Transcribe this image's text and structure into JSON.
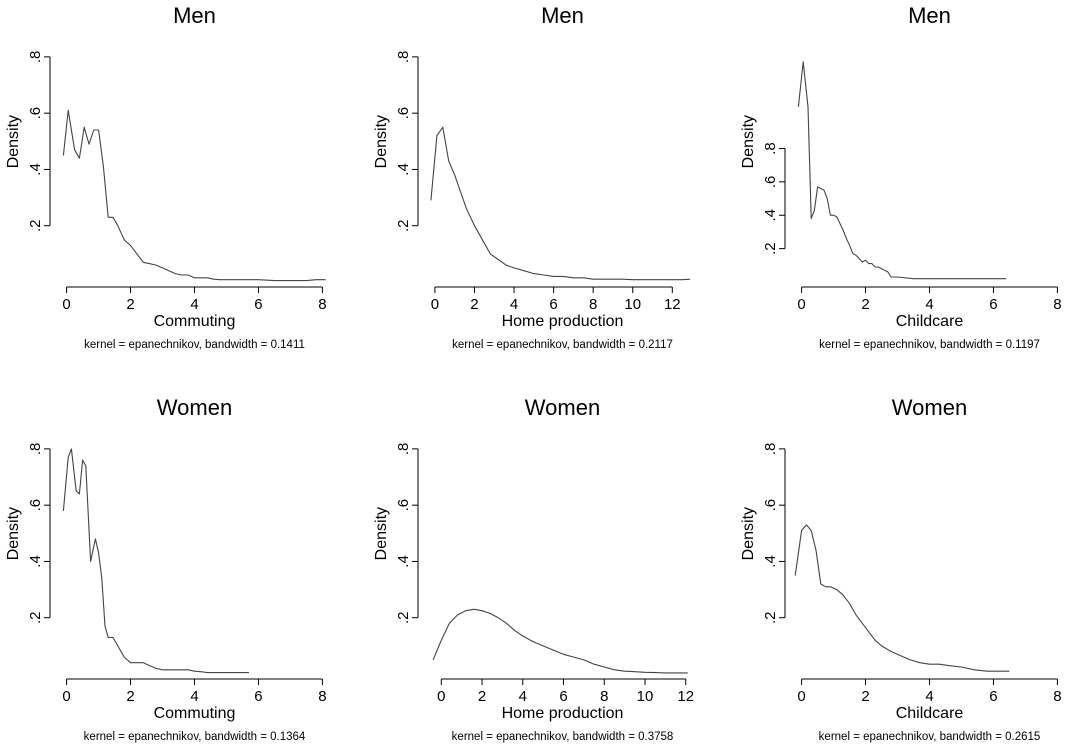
{
  "chart_data": [
    {
      "type": "line",
      "title": "Men",
      "xlabel": "Commuting",
      "ylabel": "Density",
      "note": "kernel = epanechnikov, bandwidth = 0.1411",
      "xlim": [
        -0.3,
        8.3
      ],
      "ylim": [
        0,
        0.86
      ],
      "xticks": [
        {
          "v": 0,
          "label": "0"
        },
        {
          "v": 2,
          "label": "2"
        },
        {
          "v": 4,
          "label": "4"
        },
        {
          "v": 6,
          "label": "6"
        },
        {
          "v": 8,
          "label": "8"
        }
      ],
      "yticks": [
        {
          "v": 0.2,
          "label": ".2"
        },
        {
          "v": 0.4,
          "label": ".4"
        },
        {
          "v": 0.6,
          "label": ".6"
        },
        {
          "v": 0.8,
          "label": ".8"
        }
      ],
      "series": [
        {
          "x": [
            -0.1,
            0.05,
            0.25,
            0.4,
            0.55,
            0.7,
            0.85,
            1.0,
            1.15,
            1.3,
            1.45,
            1.6,
            1.8,
            2.0,
            2.2,
            2.4,
            2.6,
            2.8,
            3.0,
            3.2,
            3.4,
            3.6,
            3.8,
            4.0,
            4.2,
            4.4,
            4.6,
            4.8,
            5.0,
            5.5,
            6.0,
            6.5,
            7.0,
            7.5,
            7.8,
            8.1
          ],
          "y": [
            0.45,
            0.61,
            0.47,
            0.44,
            0.55,
            0.49,
            0.54,
            0.54,
            0.41,
            0.23,
            0.23,
            0.2,
            0.15,
            0.13,
            0.1,
            0.07,
            0.065,
            0.06,
            0.05,
            0.04,
            0.03,
            0.025,
            0.025,
            0.015,
            0.015,
            0.015,
            0.01,
            0.008,
            0.008,
            0.008,
            0.008,
            0.005,
            0.005,
            0.005,
            0.008,
            0.008
          ]
        }
      ]
    },
    {
      "type": "line",
      "title": "Men",
      "xlabel": "Home production",
      "ylabel": "Density",
      "note": "kernel = epanechnikov, bandwidth = 0.2117",
      "xlim": [
        -0.5,
        13.4
      ],
      "ylim": [
        0,
        0.86
      ],
      "xticks": [
        {
          "v": 0,
          "label": "0"
        },
        {
          "v": 2,
          "label": "2"
        },
        {
          "v": 4,
          "label": "4"
        },
        {
          "v": 6,
          "label": "6"
        },
        {
          "v": 8,
          "label": "8"
        },
        {
          "v": 10,
          "label": "10"
        },
        {
          "v": 12,
          "label": "12"
        }
      ],
      "yticks": [
        {
          "v": 0.2,
          "label": ".2"
        },
        {
          "v": 0.4,
          "label": ".4"
        },
        {
          "v": 0.6,
          "label": ".6"
        },
        {
          "v": 0.8,
          "label": ".8"
        }
      ],
      "series": [
        {
          "x": [
            -0.2,
            0.1,
            0.4,
            0.7,
            1.0,
            1.3,
            1.6,
            2.0,
            2.4,
            2.8,
            3.2,
            3.6,
            4.0,
            4.5,
            5.0,
            5.5,
            6.0,
            6.5,
            7.0,
            7.5,
            8.0,
            8.5,
            9.0,
            9.5,
            10.0,
            10.5,
            11.0,
            11.5,
            12.0,
            12.5,
            12.9
          ],
          "y": [
            0.29,
            0.52,
            0.55,
            0.43,
            0.38,
            0.32,
            0.26,
            0.2,
            0.15,
            0.1,
            0.08,
            0.06,
            0.05,
            0.04,
            0.03,
            0.025,
            0.02,
            0.02,
            0.015,
            0.015,
            0.01,
            0.01,
            0.01,
            0.01,
            0.008,
            0.008,
            0.008,
            0.008,
            0.008,
            0.008,
            0.01
          ]
        }
      ]
    },
    {
      "type": "line",
      "title": "Men",
      "xlabel": "Childcare",
      "ylabel": "Density",
      "note": "kernel = epanechnikov, bandwidth = 0.1197",
      "xlim": [
        -0.3,
        8.3
      ],
      "ylim": [
        0,
        1.45
      ],
      "xticks": [
        {
          "v": 0,
          "label": "0"
        },
        {
          "v": 2,
          "label": "2"
        },
        {
          "v": 4,
          "label": "4"
        },
        {
          "v": 6,
          "label": "6"
        },
        {
          "v": 8,
          "label": "8"
        }
      ],
      "yticks": [
        {
          "v": 0.2,
          "label": ".2"
        },
        {
          "v": 0.4,
          "label": ".4"
        },
        {
          "v": 0.6,
          "label": ".6"
        },
        {
          "v": 0.8,
          "label": ".8"
        }
      ],
      "series": [
        {
          "x": [
            -0.1,
            0.05,
            0.2,
            0.3,
            0.4,
            0.5,
            0.6,
            0.7,
            0.8,
            0.9,
            1.0,
            1.1,
            1.2,
            1.3,
            1.4,
            1.5,
            1.6,
            1.7,
            1.8,
            1.9,
            2.0,
            2.1,
            2.2,
            2.3,
            2.4,
            2.5,
            2.6,
            2.7,
            2.8,
            3.0,
            3.5,
            4.0,
            4.5,
            5.0,
            5.5,
            6.0,
            6.4
          ],
          "y": [
            1.05,
            1.32,
            1.05,
            0.38,
            0.43,
            0.57,
            0.56,
            0.55,
            0.5,
            0.4,
            0.4,
            0.39,
            0.35,
            0.31,
            0.26,
            0.22,
            0.17,
            0.16,
            0.14,
            0.12,
            0.13,
            0.11,
            0.11,
            0.09,
            0.09,
            0.08,
            0.07,
            0.06,
            0.03,
            0.03,
            0.02,
            0.02,
            0.02,
            0.02,
            0.02,
            0.02,
            0.02
          ]
        }
      ]
    },
    {
      "type": "line",
      "title": "Women",
      "xlabel": "Commuting",
      "ylabel": "Density",
      "note": "kernel = epanechnikov, bandwidth = 0.1364",
      "xlim": [
        -0.3,
        8.3
      ],
      "ylim": [
        0,
        0.86
      ],
      "xticks": [
        {
          "v": 0,
          "label": "0"
        },
        {
          "v": 2,
          "label": "2"
        },
        {
          "v": 4,
          "label": "4"
        },
        {
          "v": 6,
          "label": "6"
        },
        {
          "v": 8,
          "label": "8"
        }
      ],
      "yticks": [
        {
          "v": 0.2,
          "label": ".2"
        },
        {
          "v": 0.4,
          "label": ".4"
        },
        {
          "v": 0.6,
          "label": ".6"
        },
        {
          "v": 0.8,
          "label": ".8"
        }
      ],
      "series": [
        {
          "x": [
            -0.1,
            0.05,
            0.15,
            0.3,
            0.4,
            0.5,
            0.6,
            0.75,
            0.9,
            1.0,
            1.1,
            1.2,
            1.3,
            1.45,
            1.6,
            1.8,
            2.0,
            2.2,
            2.4,
            2.6,
            2.8,
            3.0,
            3.2,
            3.4,
            3.6,
            3.8,
            4.0,
            4.2,
            4.4,
            4.6,
            5.0,
            5.4,
            5.7
          ],
          "y": [
            0.58,
            0.77,
            0.8,
            0.65,
            0.64,
            0.76,
            0.74,
            0.4,
            0.48,
            0.43,
            0.34,
            0.17,
            0.13,
            0.13,
            0.1,
            0.06,
            0.04,
            0.04,
            0.04,
            0.03,
            0.02,
            0.015,
            0.015,
            0.015,
            0.015,
            0.015,
            0.01,
            0.008,
            0.005,
            0.005,
            0.005,
            0.005,
            0.005
          ]
        }
      ]
    },
    {
      "type": "line",
      "title": "Women",
      "xlabel": "Home production",
      "ylabel": "Density",
      "note": "kernel = epanechnikov, bandwidth = 0.3758",
      "xlim": [
        -0.8,
        12.7
      ],
      "ylim": [
        0,
        0.86
      ],
      "xticks": [
        {
          "v": 0,
          "label": "0"
        },
        {
          "v": 2,
          "label": "2"
        },
        {
          "v": 4,
          "label": "4"
        },
        {
          "v": 6,
          "label": "6"
        },
        {
          "v": 8,
          "label": "8"
        },
        {
          "v": 10,
          "label": "10"
        },
        {
          "v": 12,
          "label": "12"
        }
      ],
      "yticks": [
        {
          "v": 0.2,
          "label": ".2"
        },
        {
          "v": 0.4,
          "label": ".4"
        },
        {
          "v": 0.6,
          "label": ".6"
        },
        {
          "v": 0.8,
          "label": ".8"
        }
      ],
      "series": [
        {
          "x": [
            -0.4,
            0,
            0.4,
            0.8,
            1.2,
            1.6,
            2.0,
            2.4,
            2.8,
            3.2,
            3.6,
            4.0,
            4.5,
            5.0,
            5.5,
            6.0,
            6.5,
            7.0,
            7.5,
            8.0,
            8.5,
            9.0,
            9.5,
            10.0,
            10.5,
            11.0,
            11.5,
            12.1
          ],
          "y": [
            0.05,
            0.12,
            0.18,
            0.21,
            0.225,
            0.23,
            0.225,
            0.215,
            0.2,
            0.18,
            0.155,
            0.135,
            0.115,
            0.1,
            0.085,
            0.07,
            0.06,
            0.05,
            0.035,
            0.025,
            0.015,
            0.01,
            0.008,
            0.006,
            0.005,
            0.004,
            0.004,
            0.004
          ]
        }
      ]
    },
    {
      "type": "line",
      "title": "Women",
      "xlabel": "Childcare",
      "ylabel": "Density",
      "note": "kernel = epanechnikov, bandwidth = 0.2615",
      "xlim": [
        -0.3,
        8.3
      ],
      "ylim": [
        0,
        0.86
      ],
      "xticks": [
        {
          "v": 0,
          "label": "0"
        },
        {
          "v": 2,
          "label": "2"
        },
        {
          "v": 4,
          "label": "4"
        },
        {
          "v": 6,
          "label": "6"
        },
        {
          "v": 8,
          "label": "8"
        }
      ],
      "yticks": [
        {
          "v": 0.2,
          "label": ".2"
        },
        {
          "v": 0.4,
          "label": ".4"
        },
        {
          "v": 0.6,
          "label": ".6"
        },
        {
          "v": 0.8,
          "label": ".8"
        }
      ],
      "series": [
        {
          "x": [
            -0.2,
            0,
            0.15,
            0.3,
            0.45,
            0.6,
            0.75,
            0.9,
            1.1,
            1.3,
            1.5,
            1.7,
            1.9,
            2.1,
            2.3,
            2.5,
            2.8,
            3.1,
            3.4,
            3.7,
            4.0,
            4.3,
            4.6,
            5.0,
            5.4,
            5.8,
            6.5
          ],
          "y": [
            0.35,
            0.51,
            0.53,
            0.51,
            0.44,
            0.32,
            0.31,
            0.31,
            0.3,
            0.28,
            0.25,
            0.21,
            0.18,
            0.15,
            0.12,
            0.1,
            0.08,
            0.065,
            0.05,
            0.04,
            0.035,
            0.035,
            0.03,
            0.025,
            0.015,
            0.01,
            0.01
          ]
        }
      ]
    }
  ]
}
